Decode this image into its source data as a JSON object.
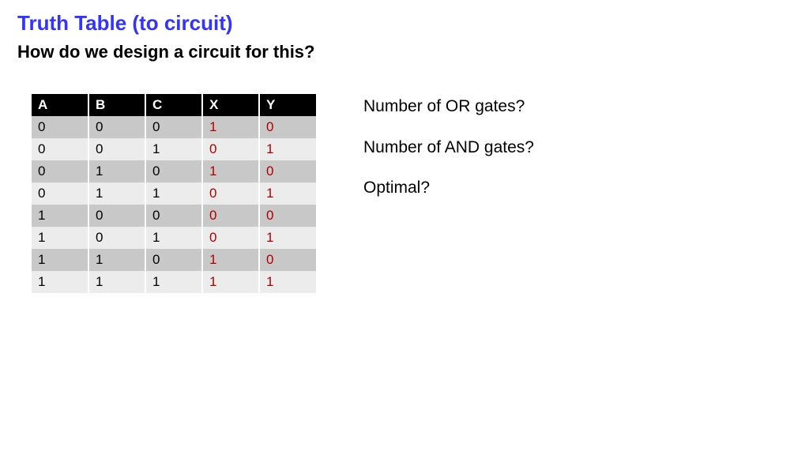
{
  "title": {
    "text": "Truth Table (to circuit)",
    "color": "#3333ff"
  },
  "subtitle": "How do we design a circuit for this?",
  "table": {
    "header_bg": "#000000",
    "header_fg": "#ffffff",
    "row_alt_light": "#ececec",
    "row_alt_dark": "#c8c8c8",
    "input_color": "#000000",
    "output_color": "#b00000",
    "columns": [
      "A",
      "B",
      "C",
      "X",
      "Y"
    ],
    "input_cols": 3,
    "rows": [
      [
        "0",
        "0",
        "0",
        "1",
        "0"
      ],
      [
        "0",
        "0",
        "1",
        "0",
        "1"
      ],
      [
        "0",
        "1",
        "0",
        "1",
        "0"
      ],
      [
        "0",
        "1",
        "1",
        "0",
        "1"
      ],
      [
        "1",
        "0",
        "0",
        "0",
        "0"
      ],
      [
        "1",
        "0",
        "1",
        "0",
        "1"
      ],
      [
        "1",
        "1",
        "0",
        "1",
        "0"
      ],
      [
        "1",
        "1",
        "1",
        "1",
        "1"
      ]
    ]
  },
  "questions": [
    "Number of OR gates?",
    "Number of AND gates?",
    "Optimal?"
  ]
}
